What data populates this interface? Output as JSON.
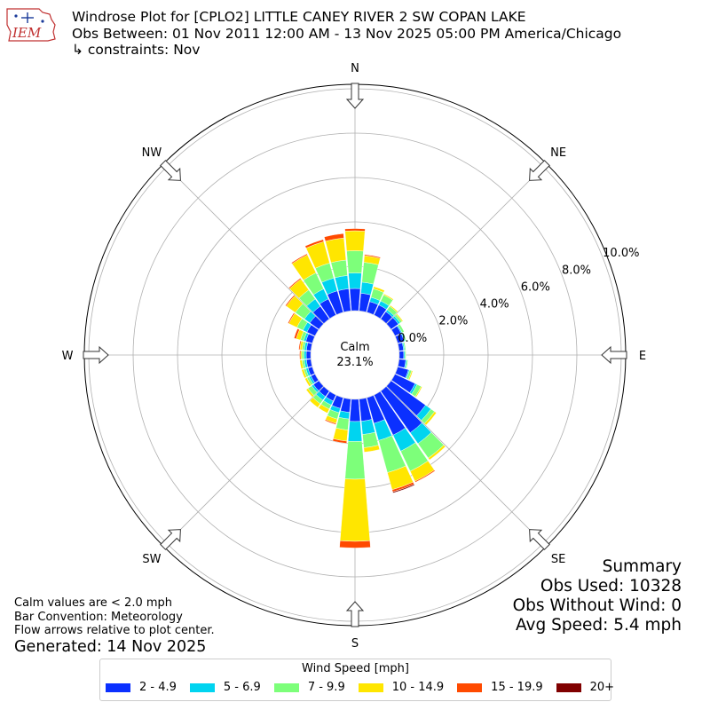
{
  "header": {
    "title_line1": "Windrose Plot for [CPLO2] LITTLE CANEY RIVER 2 SW COPAN LAKE",
    "title_line2": "Obs Between: 01 Nov 2011 12:00 AM - 13 Nov 2025 05:00 PM America/Chicago",
    "title_line3": "↳ constraints: Nov",
    "logo_text": "IEM"
  },
  "notes": {
    "calm_note": "Calm values are < 2.0 mph",
    "bar_convention": "Bar Convention: Meteorology",
    "flow_arrows": "Flow arrows relative to plot center.",
    "generated": "Generated: 14 Nov 2025"
  },
  "summary": {
    "title": "Summary",
    "obs_used": "Obs Used: 10328",
    "obs_without_wind": "Obs Without Wind: 0",
    "avg_speed": "Avg Speed: 5.4 mph"
  },
  "legend": {
    "title": "Wind Speed [mph]",
    "items": [
      {
        "label": "2 - 4.9",
        "color": "#0b30ff"
      },
      {
        "label": "5 - 6.9",
        "color": "#00d4f0"
      },
      {
        "label": "7 - 9.9",
        "color": "#7dff7a"
      },
      {
        "label": "10 - 14.9",
        "color": "#ffe600"
      },
      {
        "label": "15 - 19.9",
        "color": "#ff4a00"
      },
      {
        "label": "20+",
        "color": "#800000"
      }
    ]
  },
  "chart_data": {
    "type": "windrose",
    "calm_label": "Calm",
    "calm_value": "23.1%",
    "compass_labels": [
      "N",
      "NE",
      "E",
      "SE",
      "S",
      "SW",
      "W",
      "NW"
    ],
    "radial_ticks": [
      "0.0%",
      "2.0%",
      "4.0%",
      "6.0%",
      "8.0%",
      "10.0%"
    ],
    "rmax_percent": 10.0,
    "grid": true,
    "bin_width_degrees": 10,
    "direction_degrees": [
      0,
      10,
      20,
      30,
      40,
      50,
      60,
      70,
      80,
      90,
      100,
      110,
      120,
      130,
      140,
      150,
      160,
      170,
      180,
      190,
      200,
      210,
      220,
      230,
      240,
      250,
      260,
      270,
      280,
      290,
      300,
      310,
      320,
      330,
      340,
      350
    ],
    "speed_bins": [
      "2 - 4.9",
      "5 - 6.9",
      "7 - 9.9",
      "10 - 14.9",
      "15 - 19.9",
      "20+"
    ],
    "series": [
      {
        "name": "2 - 4.9",
        "color": "#0b30ff",
        "values": [
          1.0,
          0.8,
          0.5,
          0.5,
          0.4,
          0.4,
          0.3,
          0.3,
          0.2,
          0.2,
          0.3,
          0.5,
          1.0,
          1.9,
          2.3,
          2.0,
          1.2,
          1.0,
          1.0,
          0.6,
          0.5,
          0.3,
          0.3,
          0.3,
          0.2,
          0.2,
          0.2,
          0.2,
          0.2,
          0.3,
          0.4,
          0.5,
          0.7,
          0.8,
          1.0,
          1.0
        ]
      },
      {
        "name": "5 - 6.9",
        "color": "#00d4f0",
        "values": [
          0.7,
          0.5,
          0.2,
          0.2,
          0.1,
          0.1,
          0.05,
          0.05,
          0.05,
          0.05,
          0.05,
          0.05,
          0.1,
          0.3,
          0.6,
          0.8,
          0.8,
          0.6,
          0.9,
          0.3,
          0.2,
          0.2,
          0.2,
          0.1,
          0.1,
          0.1,
          0.1,
          0.1,
          0.1,
          0.1,
          0.2,
          0.3,
          0.4,
          0.5,
          0.6,
          0.6
        ]
      },
      {
        "name": "7 - 9.9",
        "color": "#7dff7a",
        "values": [
          1.0,
          0.9,
          0.4,
          0.3,
          0.2,
          0.1,
          0.1,
          0.05,
          0.05,
          0.05,
          0.05,
          0.1,
          0.2,
          0.2,
          0.8,
          1.0,
          1.5,
          0.6,
          1.7,
          0.5,
          0.3,
          0.2,
          0.2,
          0.2,
          0.1,
          0.1,
          0.1,
          0.1,
          0.1,
          0.15,
          0.3,
          0.5,
          0.5,
          0.8,
          0.7,
          0.7
        ]
      },
      {
        "name": "10 - 14.9",
        "color": "#ffe600",
        "values": [
          0.9,
          0.3,
          0.1,
          0.05,
          0.05,
          0.05,
          0.0,
          0.0,
          0.0,
          0.0,
          0.0,
          0.05,
          0.05,
          0.1,
          0.1,
          0.5,
          0.8,
          0.2,
          2.8,
          0.5,
          0.2,
          0.2,
          0.2,
          0.1,
          0.1,
          0.1,
          0.1,
          0.05,
          0.1,
          0.2,
          0.4,
          0.5,
          0.6,
          0.9,
          1.0,
          1.0
        ]
      },
      {
        "name": "15 - 19.9",
        "color": "#ff4a00",
        "values": [
          0.1,
          0.05,
          0.0,
          0.0,
          0.0,
          0.0,
          0.0,
          0.0,
          0.0,
          0.0,
          0.0,
          0.0,
          0.0,
          0.0,
          0.0,
          0.05,
          0.1,
          0.0,
          0.3,
          0.1,
          0.05,
          0.0,
          0.0,
          0.0,
          0.0,
          0.0,
          0.0,
          0.05,
          0.05,
          0.1,
          0.05,
          0.05,
          0.05,
          0.05,
          0.1,
          0.2
        ]
      },
      {
        "name": "20+",
        "color": "#800000",
        "values": [
          0.0,
          0.0,
          0.0,
          0.0,
          0.0,
          0.0,
          0.0,
          0.0,
          0.0,
          0.0,
          0.0,
          0.0,
          0.0,
          0.0,
          0.0,
          0.0,
          0.05,
          0.0,
          0.0,
          0.0,
          0.0,
          0.0,
          0.0,
          0.0,
          0.0,
          0.0,
          0.0,
          0.0,
          0.0,
          0.0,
          0.0,
          0.0,
          0.0,
          0.0,
          0.0,
          0.0
        ]
      }
    ]
  }
}
